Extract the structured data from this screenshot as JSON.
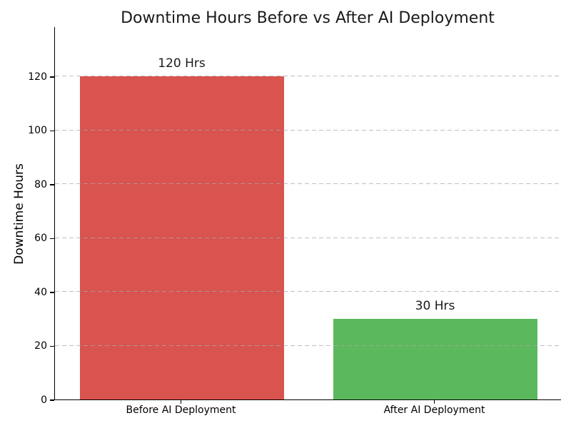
{
  "figure": {
    "background": "#ffffff"
  },
  "chart_data": {
    "type": "bar",
    "title": "Downtime Hours Before vs After AI Deployment",
    "xlabel": "",
    "ylabel": "Downtime Hours",
    "categories": [
      "Before AI Deployment",
      "After AI Deployment"
    ],
    "values": [
      120,
      30
    ],
    "bar_labels": [
      "120 Hrs",
      "30 Hrs"
    ],
    "bar_colors": [
      "#d9534f",
      "#5cb85c"
    ],
    "yticks": [
      0,
      20,
      40,
      60,
      80,
      100,
      120
    ],
    "ylim": [
      0,
      138.5
    ],
    "grid": {
      "axis": "y",
      "style": "dashed",
      "color": "#aaaaaa"
    },
    "legend": "none",
    "title_color": "#1a1a1a",
    "text_color": "#000000"
  }
}
